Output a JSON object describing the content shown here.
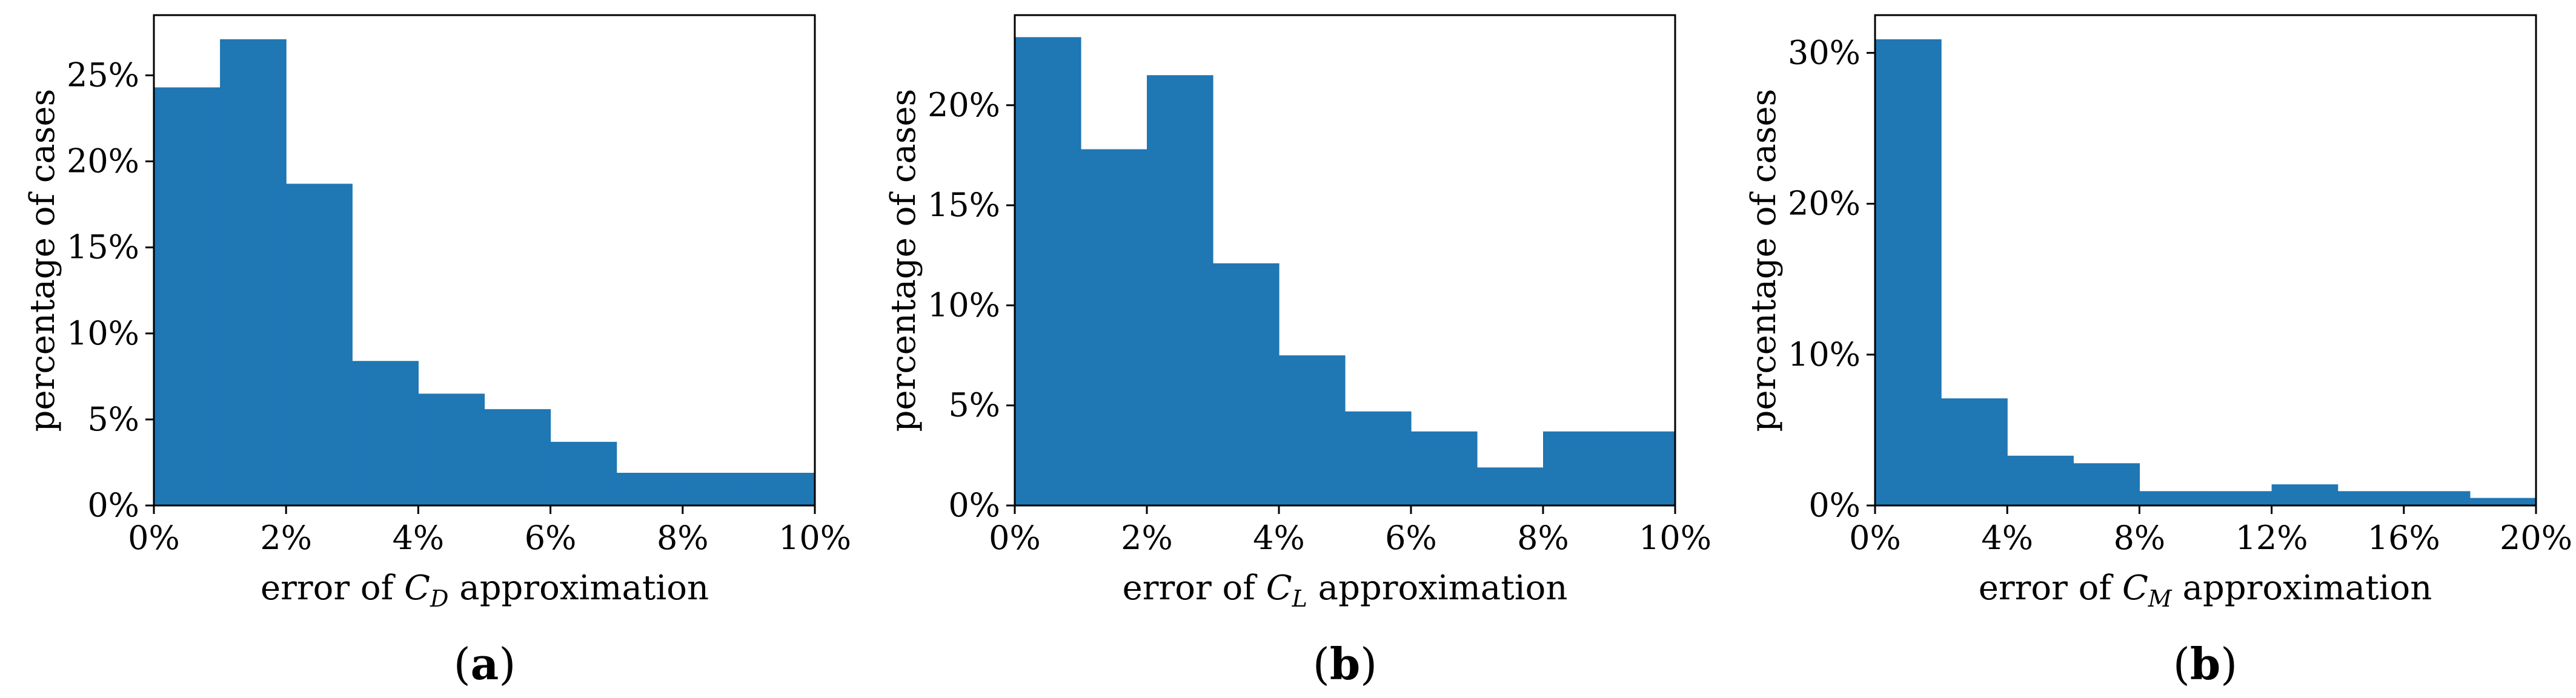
{
  "colors": {
    "bar": "#1f77b4",
    "axis": "#000000",
    "background": "#ffffff"
  },
  "chart_data": [
    {
      "type": "bar",
      "panel_label": "a",
      "xlabel_prefix": "error of ",
      "xlabel_symbol": "C",
      "xlabel_sub": "D",
      "xlabel_suffix": " approximation",
      "ylabel": "percentage of cases",
      "bin_edges": [
        0,
        1,
        2,
        3,
        4,
        5,
        6,
        7,
        8,
        9,
        10
      ],
      "values": [
        24.3,
        27.1,
        18.7,
        8.4,
        6.5,
        5.6,
        3.7,
        1.9,
        1.9,
        1.9
      ],
      "xlim": [
        0,
        10
      ],
      "ylim": [
        0,
        28.5
      ],
      "xticks": [
        0,
        2,
        4,
        6,
        8,
        10
      ],
      "xtick_labels": [
        "0%",
        "2%",
        "4%",
        "6%",
        "8%",
        "10%"
      ],
      "yticks": [
        0,
        5,
        10,
        15,
        20,
        25
      ],
      "ytick_labels": [
        "0%",
        "5%",
        "10%",
        "15%",
        "20%",
        "25%"
      ]
    },
    {
      "type": "bar",
      "panel_label": "b",
      "xlabel_prefix": "error of ",
      "xlabel_symbol": "C",
      "xlabel_sub": "L",
      "xlabel_suffix": " approximation",
      "ylabel": "percentage of cases",
      "bin_edges": [
        0,
        1,
        2,
        3,
        4,
        5,
        6,
        7,
        8,
        9,
        10
      ],
      "values": [
        23.4,
        17.8,
        21.5,
        12.1,
        7.5,
        4.7,
        3.7,
        1.9,
        3.7,
        3.7
      ],
      "xlim": [
        0,
        10
      ],
      "ylim": [
        0,
        24.5
      ],
      "xticks": [
        0,
        2,
        4,
        6,
        8,
        10
      ],
      "xtick_labels": [
        "0%",
        "2%",
        "4%",
        "6%",
        "8%",
        "10%"
      ],
      "yticks": [
        0,
        5,
        10,
        15,
        20
      ],
      "ytick_labels": [
        "0%",
        "5%",
        "10%",
        "15%",
        "20%"
      ]
    },
    {
      "type": "bar",
      "panel_label": "b",
      "xlabel_prefix": "error of ",
      "xlabel_symbol": "C",
      "xlabel_sub": "M",
      "xlabel_suffix": " approximation",
      "ylabel": "percentage of cases",
      "bin_edges": [
        0,
        2,
        4,
        6,
        8,
        10,
        12,
        14,
        16,
        18,
        20
      ],
      "values": [
        30.9,
        7.1,
        3.3,
        2.8,
        0.95,
        0.95,
        1.4,
        0.95,
        0.95,
        0.5
      ],
      "xlim": [
        0,
        20
      ],
      "ylim": [
        0,
        32.5
      ],
      "xticks": [
        0,
        4,
        8,
        12,
        16,
        20
      ],
      "xtick_labels": [
        "0%",
        "4%",
        "8%",
        "12%",
        "16%",
        "20%"
      ],
      "yticks": [
        0,
        10,
        20,
        30
      ],
      "ytick_labels": [
        "0%",
        "10%",
        "20%",
        "30%"
      ]
    }
  ]
}
